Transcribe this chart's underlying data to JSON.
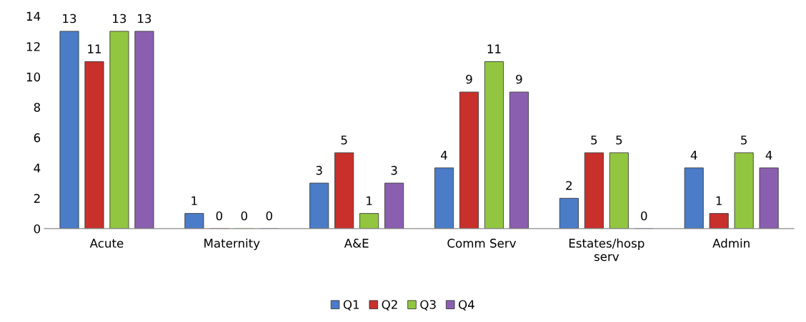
{
  "chart_data": {
    "type": "bar",
    "categories": [
      "Acute",
      "Maternity",
      "A&E",
      "Comm Serv",
      "Estates/hosp\nserv",
      "Admin"
    ],
    "series": [
      {
        "name": "Q1",
        "color": "#4a7cc7",
        "values": [
          13,
          1,
          3,
          4,
          2,
          4
        ]
      },
      {
        "name": "Q2",
        "color": "#c8302c",
        "values": [
          11,
          0,
          5,
          9,
          5,
          1
        ]
      },
      {
        "name": "Q3",
        "color": "#92c640",
        "values": [
          13,
          0,
          1,
          11,
          5,
          5
        ]
      },
      {
        "name": "Q4",
        "color": "#8b5fb0",
        "values": [
          13,
          0,
          3,
          9,
          0,
          4
        ]
      }
    ],
    "ylim": [
      0,
      14
    ],
    "yticks": [
      0,
      2,
      4,
      6,
      8,
      10,
      12,
      14
    ],
    "grid": false,
    "legend": "bottom",
    "data_labels": true
  }
}
